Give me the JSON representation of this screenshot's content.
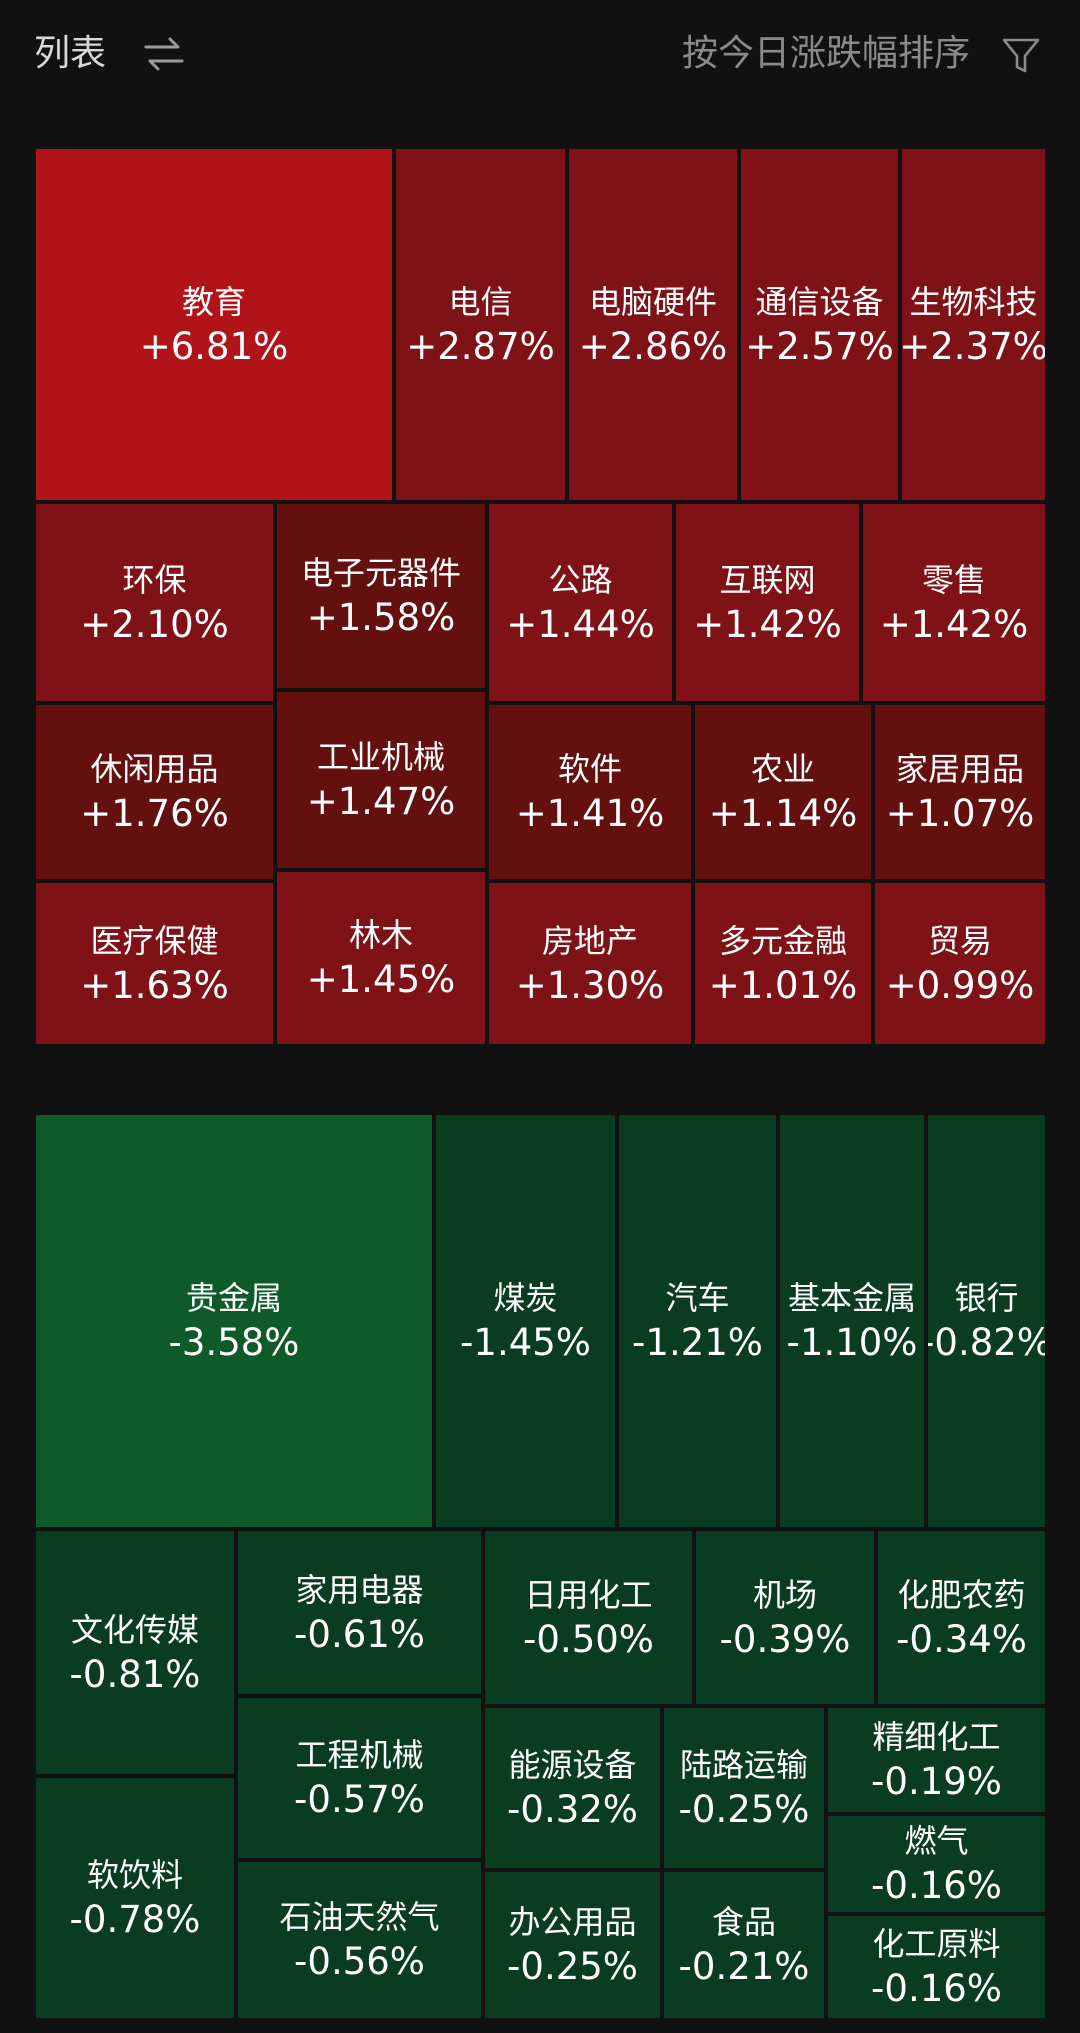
{
  "header": {
    "title": "列表",
    "swap_icon": "swap-arrows-icon",
    "sort_label": "按今日涨跌幅排序",
    "filter_icon": "filter-icon"
  },
  "colors": {
    "background": "#111111",
    "up_strong": "#b01318",
    "up_mid": "#7f1217",
    "up_dark": "#63100f",
    "down_strong": "#0e5a2a",
    "down_mid": "#0b4322",
    "down_dark": "#0a3d20"
  },
  "gainers": [
    {
      "name": "教育",
      "change": "+6.81%"
    },
    {
      "name": "电信",
      "change": "+2.87%"
    },
    {
      "name": "电脑硬件",
      "change": "+2.86%"
    },
    {
      "name": "通信设备",
      "change": "+2.57%"
    },
    {
      "name": "生物科技",
      "change": "+2.37%"
    },
    {
      "name": "环保",
      "change": "+2.10%"
    },
    {
      "name": "电子元器件",
      "change": "+1.58%"
    },
    {
      "name": "公路",
      "change": "+1.44%"
    },
    {
      "name": "互联网",
      "change": "+1.42%"
    },
    {
      "name": "零售",
      "change": "+1.42%"
    },
    {
      "name": "休闲用品",
      "change": "+1.76%"
    },
    {
      "name": "工业机械",
      "change": "+1.47%"
    },
    {
      "name": "软件",
      "change": "+1.41%"
    },
    {
      "name": "农业",
      "change": "+1.14%"
    },
    {
      "name": "家居用品",
      "change": "+1.07%"
    },
    {
      "name": "医疗保健",
      "change": "+1.63%"
    },
    {
      "name": "林木",
      "change": "+1.45%"
    },
    {
      "name": "房地产",
      "change": "+1.30%"
    },
    {
      "name": "多元金融",
      "change": "+1.01%"
    },
    {
      "name": "贸易",
      "change": "+0.99%"
    }
  ],
  "losers": [
    {
      "name": "贵金属",
      "change": "-3.58%"
    },
    {
      "name": "煤炭",
      "change": "-1.45%"
    },
    {
      "name": "汽车",
      "change": "-1.21%"
    },
    {
      "name": "基本金属",
      "change": "-1.10%"
    },
    {
      "name": "银行",
      "change": "-0.82%"
    },
    {
      "name": "文化传媒",
      "change": "-0.81%"
    },
    {
      "name": "家用电器",
      "change": "-0.61%"
    },
    {
      "name": "日用化工",
      "change": "-0.50%"
    },
    {
      "name": "机场",
      "change": "-0.39%"
    },
    {
      "name": "化肥农药",
      "change": "-0.34%"
    },
    {
      "name": "工程机械",
      "change": "-0.57%"
    },
    {
      "name": "能源设备",
      "change": "-0.32%"
    },
    {
      "name": "陆路运输",
      "change": "-0.25%"
    },
    {
      "name": "精细化工",
      "change": "-0.19%"
    },
    {
      "name": "燃气",
      "change": "-0.16%"
    },
    {
      "name": "软饮料",
      "change": "-0.78%"
    },
    {
      "name": "石油天然气",
      "change": "-0.56%"
    },
    {
      "name": "办公用品",
      "change": "-0.25%"
    },
    {
      "name": "食品",
      "change": "-0.21%"
    },
    {
      "name": "化工原料",
      "change": "-0.16%"
    }
  ]
}
